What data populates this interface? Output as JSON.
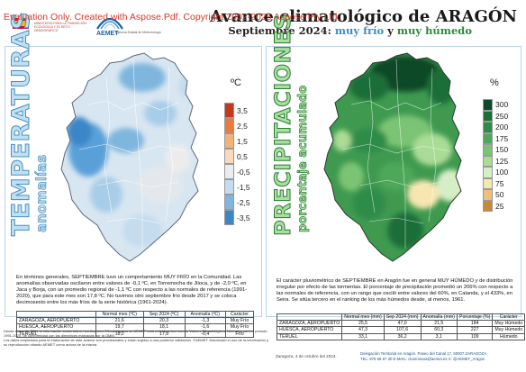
{
  "header": {
    "watermark": "Evaluation Only. Created with Aspose.Pdf. Copyright 2002-2025 Aspose Pty Ltd.",
    "title_line1": "Avance climatológico de ARAGÓN",
    "title_line2_prefix": "Septiembre 2024:",
    "title_line2_cold": "muy frío",
    "title_line2_and": "y",
    "title_line2_wet": "muy húmedo",
    "logo_text": "MINISTERIO PARA LA TRANSICIÓN ECOLÓGICA Y EL RETO DEMOGRÁFICO",
    "agency_name": "Agencia Estatal de Meteorología"
  },
  "temperature_panel": {
    "vertical_title": "TEMPERATURAS",
    "vertical_subtitle": "anomalías",
    "legend_unit": "ºC",
    "legend": [
      {
        "label": "3,5",
        "color": "#c8361c"
      },
      {
        "label": "2,5",
        "color": "#ec7a3c"
      },
      {
        "label": "1,5",
        "color": "#f5b17c"
      },
      {
        "label": "0,5",
        "color": "#fad8bc"
      },
      {
        "label": "-0,5",
        "color": "#ececec"
      },
      {
        "label": "-1,5",
        "color": "#c4dcee"
      },
      {
        "label": "-2,5",
        "color": "#7fb6de"
      },
      {
        "label": "-3,5",
        "color": "#3a86c8"
      }
    ],
    "summary": "En términos generales, SEPTIEMBRE tuvo un comportamiento MUY FRÍO en la Comunidad. Las anomalías observadas oscilaron entre valores de -0,1 ºC, en Torremocha de Jiloca, y de -2,0 ºC, en Jaca y Borja, con un promedio regional de -1,1 ºC con respecto a las normales de referencia (1991-2020), que para este mes son 17,8 ºC. No tuvimos otro septiembre frío desde 2017 y se coloca decimosexto entre los más fríos de la serie histórica (1961-2024).",
    "table": {
      "headers": [
        "",
        "Normal mes (ºC)",
        "Sep 2024 (ºC)",
        "Anomalía (ºC)",
        "Carácter"
      ],
      "rows": [
        [
          "ZARAGOZA, AEROPUERTO",
          "21,6",
          "20,3",
          "-1,3",
          "Muy Frío"
        ],
        [
          "HUESCA, AEROPUERTO",
          "19,7",
          "18,1",
          "-1,6",
          "Muy Frío"
        ],
        [
          "TERUEL",
          "18,2",
          "17,8",
          "-0,4",
          "Frío"
        ]
      ]
    }
  },
  "precipitation_panel": {
    "vertical_title": "PRECIPITACIONES",
    "vertical_subtitle": "porcentaje acumulado",
    "legend_unit": "%",
    "legend": [
      {
        "label": "300",
        "color": "#0b4a28"
      },
      {
        "label": "250",
        "color": "#1b6e38"
      },
      {
        "label": "200",
        "color": "#2f8c48"
      },
      {
        "label": "175",
        "color": "#4ea85a"
      },
      {
        "label": "150",
        "color": "#7cc474"
      },
      {
        "label": "125",
        "color": "#aadc96"
      },
      {
        "label": "100",
        "color": "#d6eec6"
      },
      {
        "label": "75",
        "color": "#f6e6b0"
      },
      {
        "label": "50",
        "color": "#eec07a"
      },
      {
        "label": "25",
        "color": "#c8883c"
      }
    ],
    "summary": "El carácter pluviométrico de SEPTIEMBRE en Aragón fue en general MUY HÚMEDO y de distribución irregular por efecto de las tormentas. El porcentaje de precipitación promedió un 206% con respecto a las normales de referencia, con un rango que osciló entre valores del 60%, en Calanda, y el 433%, en Seira. Se sitúa tercero en el ranking de los más húmedos desde, al menos, 1961.",
    "table": {
      "headers": [
        "",
        "Normal mes (mm)",
        "Sep 2024 (mm)",
        "Anomalía (mm)",
        "Porcentaje (%)",
        "Carácter"
      ],
      "rows": [
        [
          "ZARAGOZA, AEROPUERTO",
          "25,5",
          "47,0",
          "21,5",
          "184",
          "Muy Húmedo"
        ],
        [
          "HUESCA, AEROPUERTO",
          "47,3",
          "107,6",
          "60,3",
          "227",
          "Muy Húmedo"
        ],
        [
          "TERUEL",
          "33,1",
          "36,2",
          "3,1",
          "109",
          "Húmedo"
        ]
      ]
    }
  },
  "footer": {
    "disclaimer_1": "Desde enero de 2024 la información contenida en los Avances Climatológicos de AEMET está referida a los nuevos Valores Climatológicos Normales para el periodo 1991-2020, de conformidad con las directrices marcadas por la OMM.",
    "disclaimer_2": "Los datos empleados para la elaboración de este avance son provisionales y están sujetos a una posterior validación. ©AEMET. Autorizado el uso de la información y su reproducción citando AEMET como autora de la misma.",
    "date_line": "Zaragoza, 4 de octubre del 2024.",
    "address": "Delegación Territorial en Aragón. Paseo del Canal 17. 50007 ZARAGOZA",
    "contact": "TEL: 976 56 97 30  E-MAIL: clusrrosara@aemet.es  X: @AEMET_Aragon"
  }
}
